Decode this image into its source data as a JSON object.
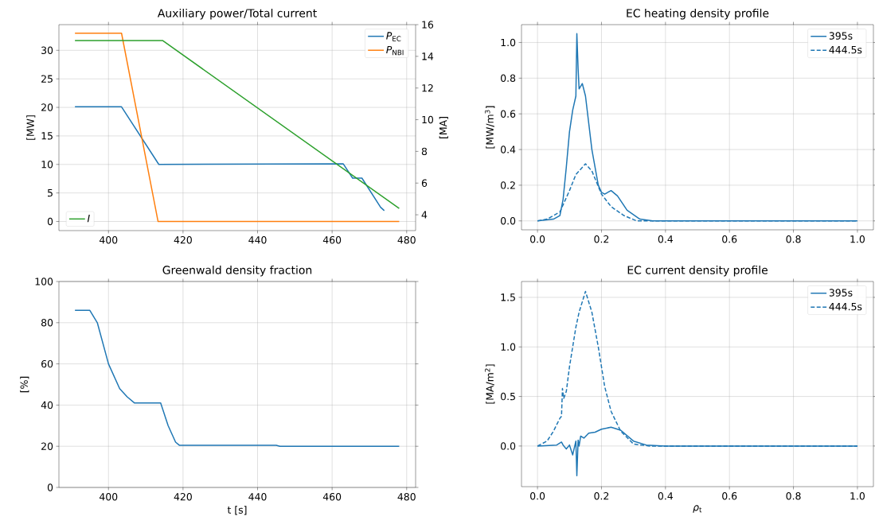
{
  "chart_data": [
    {
      "type": "line",
      "title": "Auxiliary power/Total current",
      "ylabel": "[MW]",
      "y2label": "[MA]",
      "grid": true,
      "legend": "top right",
      "xlim": [
        386.7,
        482.4
      ],
      "xticks": [
        400,
        420,
        440,
        460,
        480
      ],
      "ylim": [
        -1.6,
        34.5
      ],
      "yticks": [
        0,
        5,
        10,
        15,
        20,
        25,
        30
      ],
      "y2lim": [
        3,
        16
      ],
      "y2ticks": [
        4,
        6,
        8,
        10,
        12,
        14,
        16
      ],
      "series": [
        {
          "name": "*P*$_{EC}$",
          "color": "#1f77b4",
          "x": [
            391,
            403.5,
            413.5,
            463,
            465.5,
            468,
            473,
            474
          ],
          "values": [
            20.1,
            20.1,
            10,
            10.1,
            7.6,
            7.6,
            2.5,
            1.9
          ]
        },
        {
          "name": "*P*$_{NBI}$",
          "color": "#ff7f0e",
          "x": [
            391,
            403.5,
            413.3,
            478
          ],
          "values": [
            33,
            33,
            0,
            0
          ]
        },
        {
          "name": "*I*",
          "color": "#2ca02c",
          "axis": "y2",
          "x": [
            391,
            414.5,
            478
          ],
          "values": [
            15,
            15,
            4.4
          ]
        }
      ]
    },
    {
      "type": "line",
      "title": "EC heating density profile",
      "ylabel": "[MW/m$^{3}$]",
      "grid": true,
      "legend": "top right",
      "xlim": [
        -0.05,
        1.05
      ],
      "xticks": [
        {
          "value": 0,
          "label": "0.0"
        },
        {
          "value": 0.2,
          "label": "0.2"
        },
        {
          "value": 0.4,
          "label": "0.4"
        },
        {
          "value": 0.6,
          "label": "0.6"
        },
        {
          "value": 0.8,
          "label": "0.8"
        },
        {
          "value": 1,
          "label": "1.0"
        }
      ],
      "ylim": [
        -0.05,
        1.1
      ],
      "yticks": [
        {
          "value": 0,
          "label": "0.0"
        },
        {
          "value": 0.2,
          "label": "0.2"
        },
        {
          "value": 0.4,
          "label": "0.4"
        },
        {
          "value": 0.6,
          "label": "0.6"
        },
        {
          "value": 0.8,
          "label": "0.8"
        },
        {
          "value": 1,
          "label": "1.0"
        }
      ],
      "series": [
        {
          "name": "395s",
          "color": "#1f77b4",
          "line_style": "solid",
          "x": [
            0,
            0.05,
            0.07,
            0.08,
            0.09,
            0.1,
            0.11,
            0.12,
            0.123,
            0.127,
            0.13,
            0.14,
            0.15,
            0.17,
            0.19,
            0.2,
            0.21,
            0.23,
            0.25,
            0.28,
            0.32,
            0.36,
            1
          ],
          "values": [
            0,
            0.01,
            0.03,
            0.12,
            0.3,
            0.5,
            0.62,
            0.7,
            1.05,
            0.85,
            0.74,
            0.77,
            0.7,
            0.4,
            0.2,
            0.16,
            0.15,
            0.17,
            0.14,
            0.06,
            0.01,
            0,
            0
          ]
        },
        {
          "name": "444.5s",
          "color": "#1f77b4",
          "line_style": "dashed",
          "x": [
            0,
            0.03,
            0.07,
            0.1,
            0.12,
            0.15,
            0.17,
            0.2,
            0.23,
            0.27,
            0.31,
            1
          ],
          "values": [
            0,
            0.01,
            0.05,
            0.17,
            0.26,
            0.32,
            0.28,
            0.15,
            0.08,
            0.03,
            0,
            0
          ]
        }
      ]
    },
    {
      "type": "line",
      "title": "Greenwald density fraction",
      "xlabel": "t [s]",
      "ylabel": "[%]",
      "grid": true,
      "xlim": [
        386.7,
        482.4
      ],
      "xticks": [
        400,
        420,
        440,
        460,
        480
      ],
      "ylim": [
        0,
        100
      ],
      "yticks": [
        0,
        20,
        40,
        60,
        80,
        100
      ],
      "series": [
        {
          "color": "#1f77b4",
          "x": [
            391,
            395,
            397,
            400,
            403,
            405,
            407,
            414,
            416,
            418,
            419,
            445,
            446,
            478
          ],
          "values": [
            86,
            86,
            80,
            60,
            48,
            44,
            41,
            41,
            30,
            22,
            20.5,
            20.5,
            20,
            20
          ]
        }
      ]
    },
    {
      "type": "line",
      "title": "EC current density profile",
      "xlabel": "*ρ*$_{t}$",
      "ylabel": "[MA/m$^{2}$]",
      "grid": true,
      "legend": "top right",
      "xlim": [
        -0.05,
        1.05
      ],
      "xticks": [
        {
          "value": 0,
          "label": "0.0"
        },
        {
          "value": 0.2,
          "label": "0.2"
        },
        {
          "value": 0.4,
          "label": "0.4"
        },
        {
          "value": 0.6,
          "label": "0.6"
        },
        {
          "value": 0.8,
          "label": "0.8"
        },
        {
          "value": 1,
          "label": "1.0"
        }
      ],
      "ylim": [
        -0.41,
        1.66
      ],
      "yticks": [
        {
          "value": 0,
          "label": "0.0"
        },
        {
          "value": 0.5,
          "label": "0.5"
        },
        {
          "value": 1,
          "label": "1.0"
        },
        {
          "value": 1.5,
          "label": "1.5"
        }
      ],
      "series": [
        {
          "name": "395s",
          "color": "#1f77b4",
          "line_style": "solid",
          "x": [
            0,
            0.06,
            0.075,
            0.08,
            0.09,
            0.1,
            0.11,
            0.12,
            0.123,
            0.127,
            0.13,
            0.135,
            0.145,
            0.16,
            0.18,
            0.2,
            0.23,
            0.26,
            0.3,
            0.34,
            0.4,
            1
          ],
          "values": [
            0,
            0.01,
            0.04,
            0.01,
            -0.03,
            0.01,
            -0.09,
            0.05,
            -0.3,
            0.06,
            0,
            0.1,
            0.08,
            0.13,
            0.14,
            0.17,
            0.19,
            0.16,
            0.05,
            0.01,
            0,
            0
          ]
        },
        {
          "name": "444.5s",
          "color": "#1f77b4",
          "line_style": "dashed",
          "x": [
            0,
            0.03,
            0.05,
            0.07,
            0.075,
            0.078,
            0.082,
            0.09,
            0.1,
            0.11,
            0.12,
            0.13,
            0.15,
            0.17,
            0.19,
            0.21,
            0.23,
            0.26,
            0.3,
            0.35,
            1
          ],
          "values": [
            0,
            0.05,
            0.15,
            0.28,
            0.3,
            0.58,
            0.48,
            0.55,
            0.8,
            1.0,
            1.2,
            1.35,
            1.56,
            1.35,
            1.0,
            0.6,
            0.35,
            0.15,
            0.02,
            0,
            0
          ]
        }
      ]
    }
  ]
}
